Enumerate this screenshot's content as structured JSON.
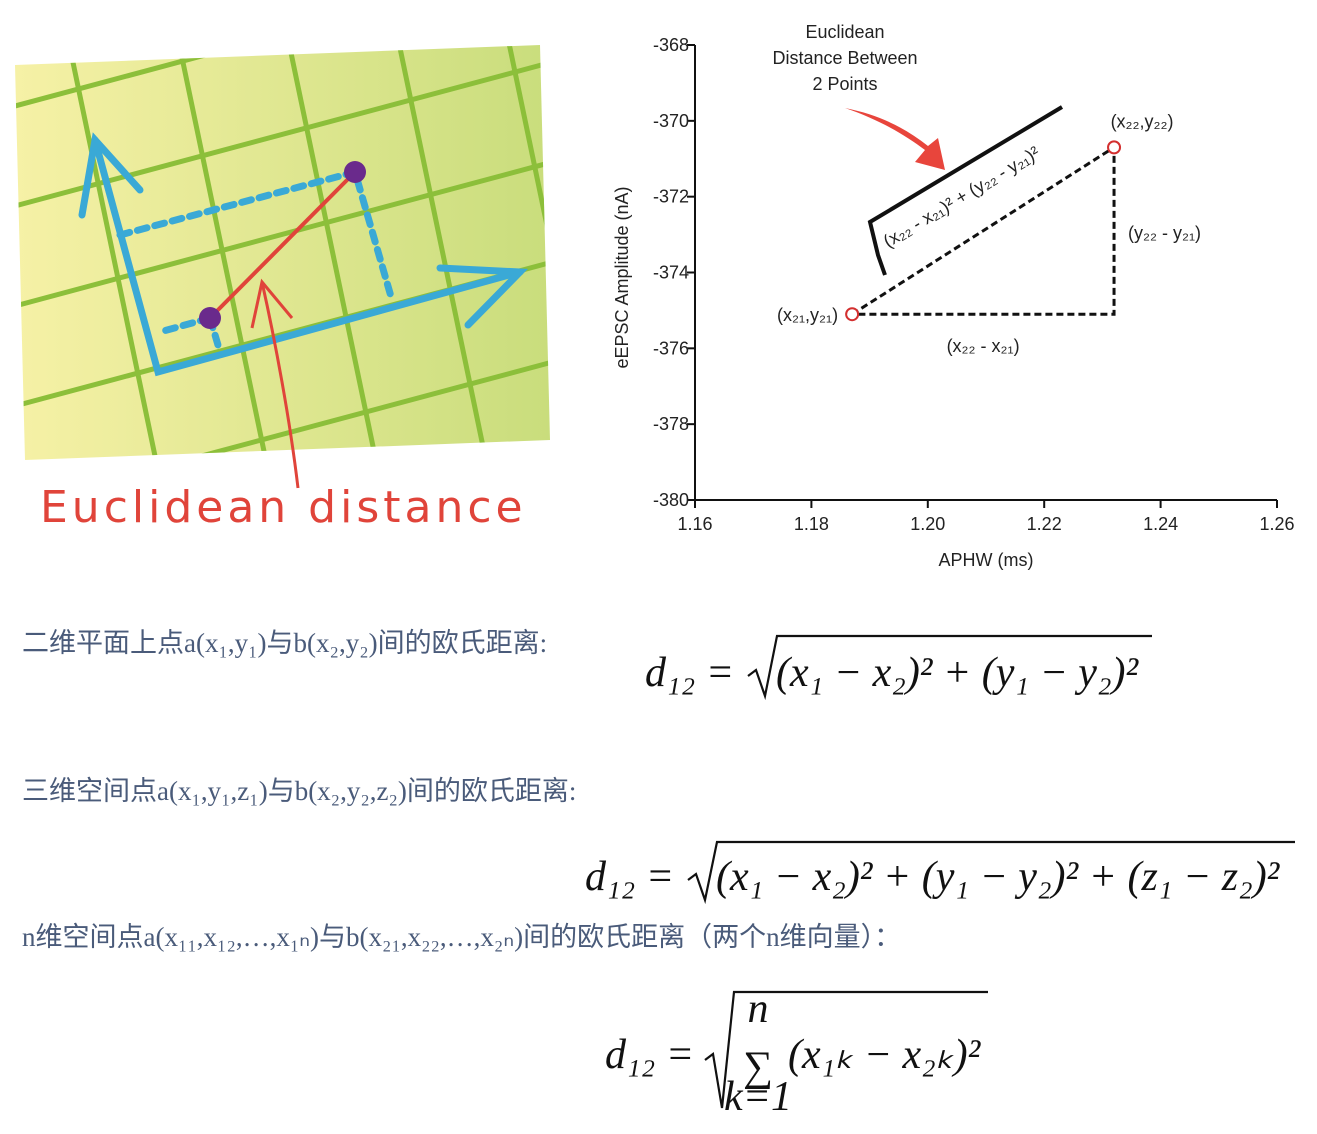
{
  "illustration": {
    "label": "Euclidean distance"
  },
  "chart_data": {
    "type": "scatter",
    "x": [
      1.187,
      1.232
    ],
    "values": [
      -375.1,
      -370.7
    ],
    "point_labels": [
      "(x₂₁,y₂₁)",
      "(x₂₂,y₂₂)"
    ],
    "color": "#d32f2f",
    "xlabel": "APHW (ms)",
    "ylabel": "eEPSC Amplitude (nA)",
    "xlim": [
      1.16,
      1.26
    ],
    "xticks": [
      1.16,
      1.18,
      {
        "value": 1.2,
        "label": "1.20"
      },
      1.22,
      1.24,
      1.26
    ],
    "ylim": [
      -380,
      -368
    ],
    "yticks": [
      -368,
      -370,
      -372,
      -374,
      -376,
      -378,
      -380
    ],
    "annotation": [
      "Euclidean",
      "Distance Between",
      "2 Points"
    ],
    "dx_label": "(x₂₂ - x₂₁)",
    "dy_label": "(y₂₂ - y₂₁)",
    "hyp_label": "(x₂₂ - x₂₁)² + (y₂₂ - y₂₁)²"
  },
  "formulas": [
    {
      "caption": "二维平面上点a(x₁,y₁)与b(x₂,y₂)间的欧氏距离:",
      "lhs": "d₁₂ =",
      "body": "(x₁ − x₂)² + (y₁ − y₂)²"
    },
    {
      "caption": "三维空间点a(x₁,y₁,z₁)与b(x₂,y₂,z₂)间的欧氏距离:",
      "lhs": "d₁₂ =",
      "body": "(x₁ − x₂)² + (y₁ − y₂)² + (z₁ − z₂)²"
    },
    {
      "caption": "n维空间点a(x₁₁,x₁₂,…,x₁ₙ)与b(x₂₁,x₂₂,…,x₂ₙ)间的欧氏距离（两个n维向量）：",
      "lhs": "d₁₂ =",
      "sum": "∑",
      "upper": "n",
      "lower": "k=1",
      "body": "(x₁ₖ − x₂ₖ)²"
    }
  ]
}
